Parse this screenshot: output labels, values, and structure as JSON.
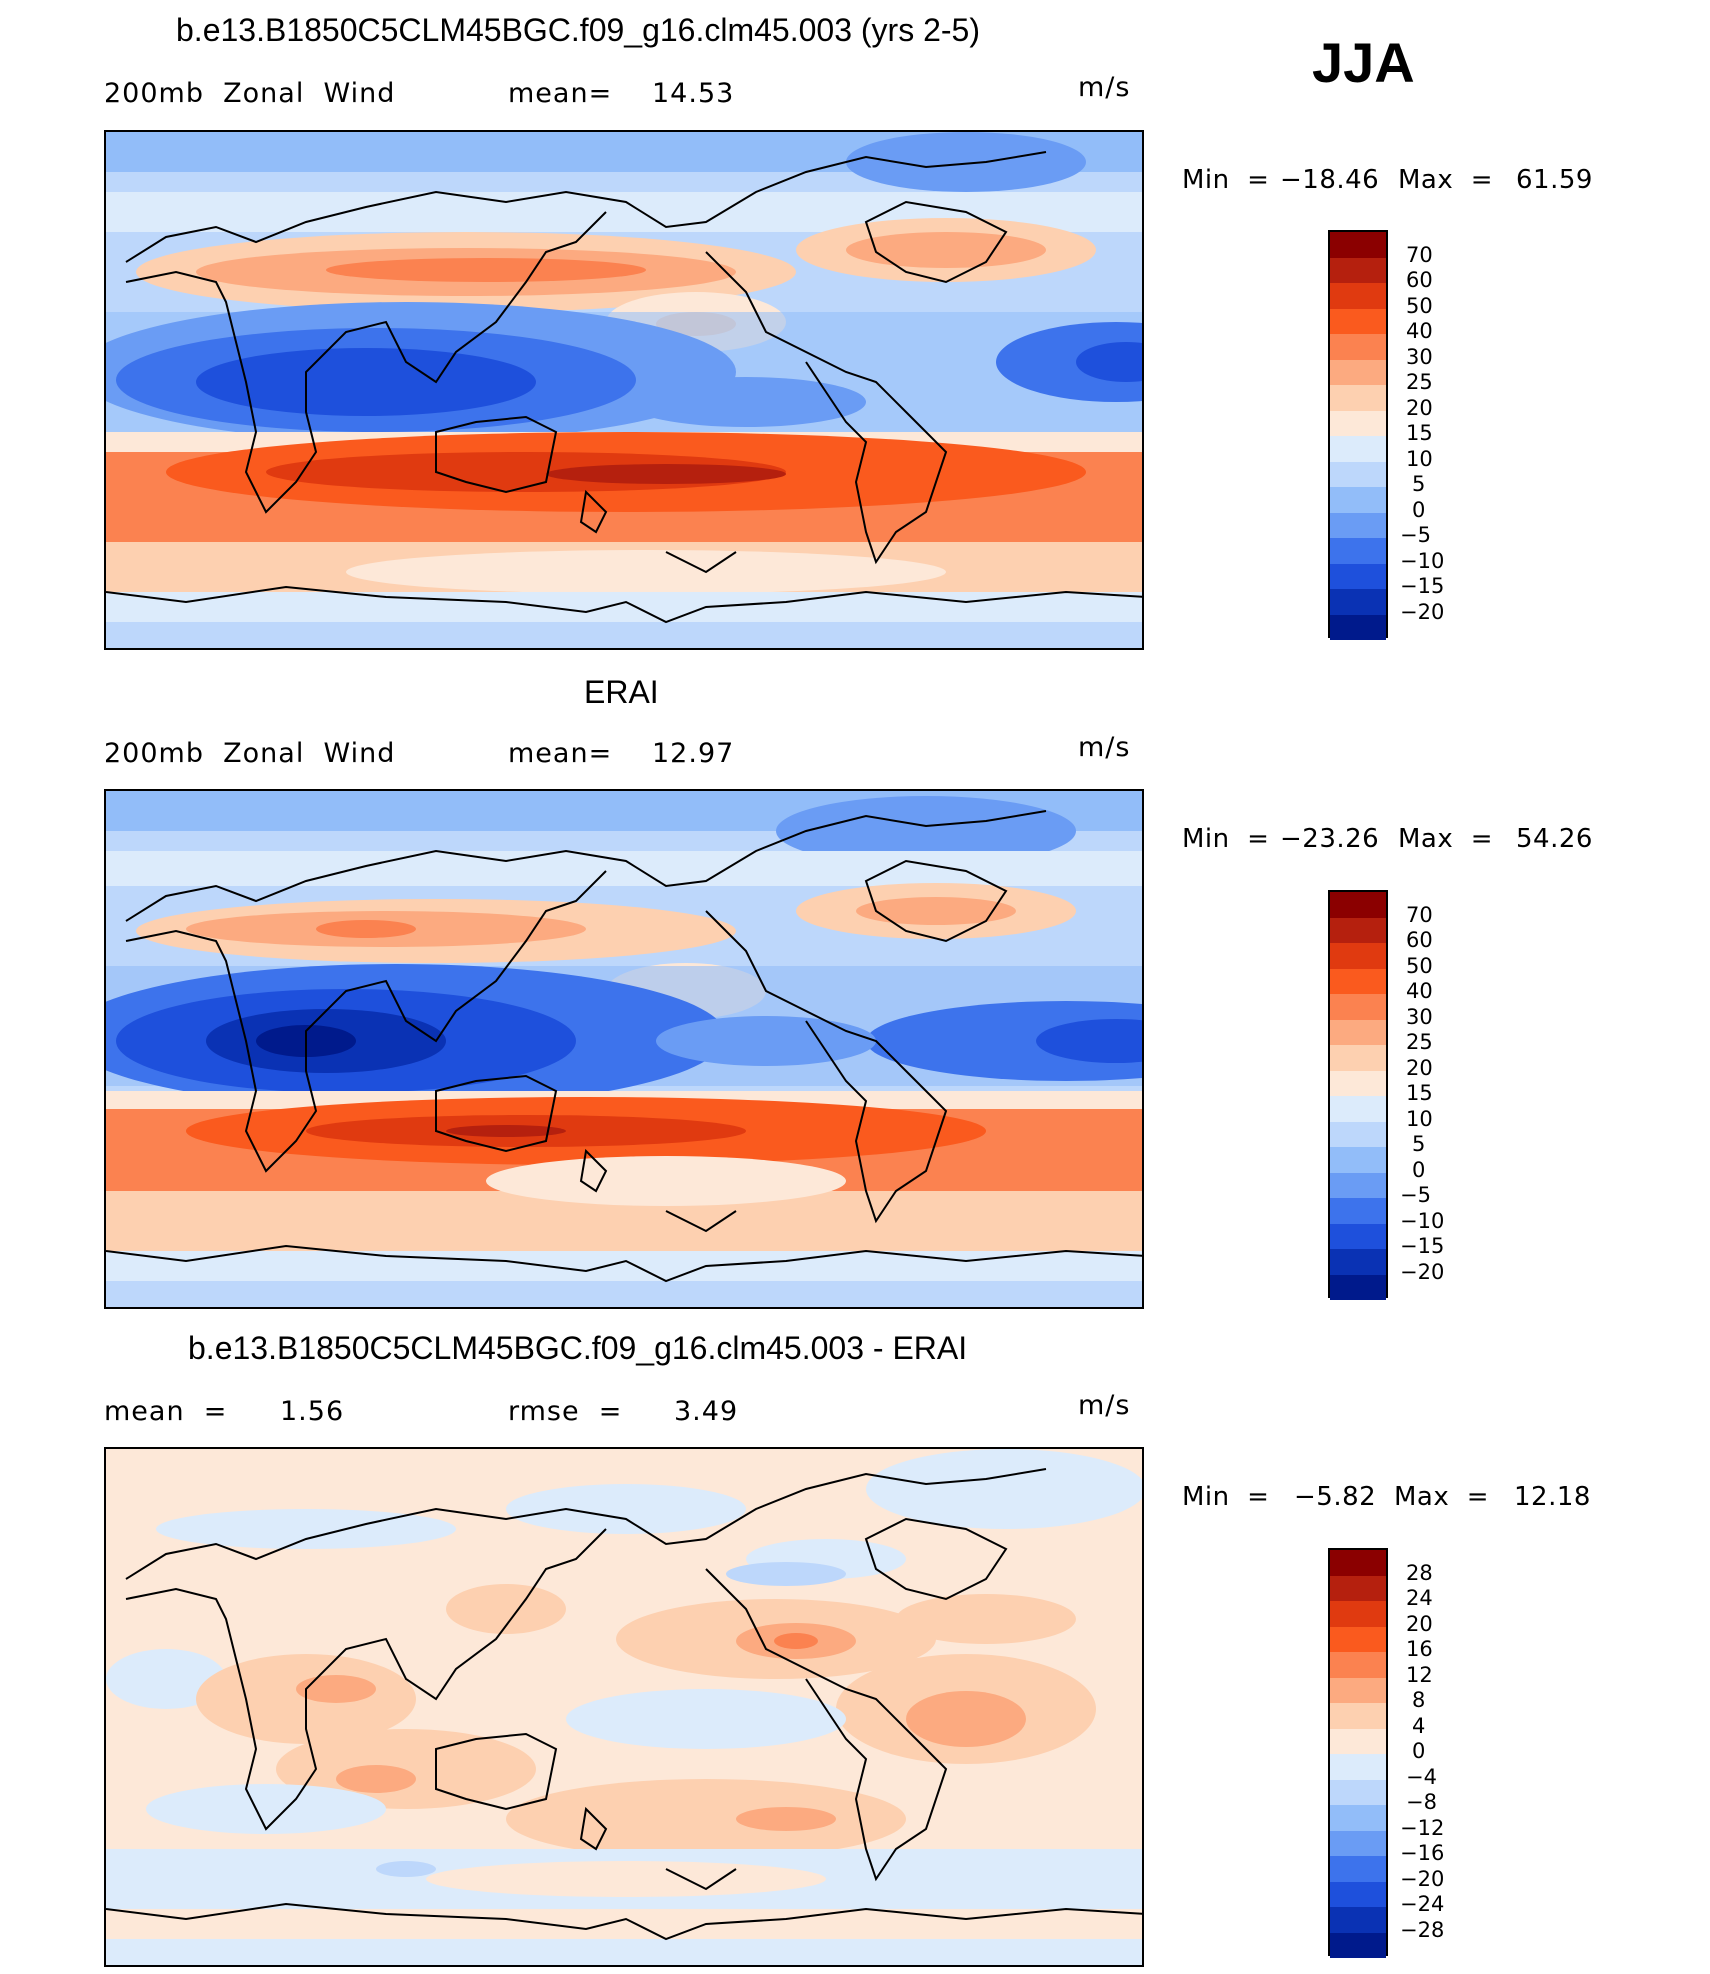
{
  "season": "JJA",
  "panels": [
    {
      "title": "b.e13.B1850C5CLM45BGC.f09_g16.clm45.003 (yrs 2-5)",
      "left_label": "200mb  Zonal  Wind",
      "mid_label": "mean=",
      "mid_value": "14.53",
      "units": "m/s",
      "minmax_label_min": "Min  =",
      "min_value": "−18.46",
      "minmax_label_max": "Max  =",
      "max_value": "61.59",
      "colorbar": {
        "labels": [
          "70",
          "60",
          "50",
          "40",
          "30",
          "25",
          "20",
          "15",
          "10",
          "5",
          "0",
          "−5",
          "−10",
          "−15",
          "−20"
        ],
        "colors": [
          "#8b0000",
          "#b5200e",
          "#e03a10",
          "#fa5a1e",
          "#fb8250",
          "#fcaa80",
          "#fdd0b0",
          "#fde8d8",
          "#dcebfb",
          "#bdd7fb",
          "#92bdf9",
          "#6a9cf4",
          "#3d73ec",
          "#1e50dc",
          "#0a32b4",
          "#001a8c"
        ]
      }
    },
    {
      "title": "ERAI",
      "left_label": "200mb  Zonal  Wind",
      "mid_label": "mean=",
      "mid_value": "12.97",
      "units": "m/s",
      "minmax_label_min": "Min  =",
      "min_value": "−23.26",
      "minmax_label_max": "Max  =",
      "max_value": "54.26",
      "colorbar": {
        "labels": [
          "70",
          "60",
          "50",
          "40",
          "30",
          "25",
          "20",
          "15",
          "10",
          "5",
          "0",
          "−5",
          "−10",
          "−15",
          "−20"
        ],
        "colors": [
          "#8b0000",
          "#b5200e",
          "#e03a10",
          "#fa5a1e",
          "#fb8250",
          "#fcaa80",
          "#fdd0b0",
          "#fde8d8",
          "#dcebfb",
          "#bdd7fb",
          "#92bdf9",
          "#6a9cf4",
          "#3d73ec",
          "#1e50dc",
          "#0a32b4",
          "#001a8c"
        ]
      }
    },
    {
      "title": "b.e13.B1850C5CLM45BGC.f09_g16.clm45.003 - ERAI",
      "left_label": "mean  =",
      "left_value": "1.56",
      "mid_label": "rmse  =",
      "mid_value": "3.49",
      "units": "m/s",
      "minmax_label_min": "Min  =",
      "min_value": "−5.82",
      "minmax_label_max": "Max  =",
      "max_value": "12.18",
      "colorbar": {
        "labels": [
          "28",
          "24",
          "20",
          "16",
          "12",
          "8",
          "4",
          "0",
          "−4",
          "−8",
          "−12",
          "−16",
          "−20",
          "−24",
          "−28"
        ],
        "colors": [
          "#8b0000",
          "#b5200e",
          "#e03a10",
          "#fa5a1e",
          "#fb8250",
          "#fcaa80",
          "#fdd0b0",
          "#fde8d8",
          "#dcebfb",
          "#bdd7fb",
          "#92bdf9",
          "#6a9cf4",
          "#3d73ec",
          "#1e50dc",
          "#0a32b4",
          "#001a8c"
        ]
      }
    }
  ]
}
